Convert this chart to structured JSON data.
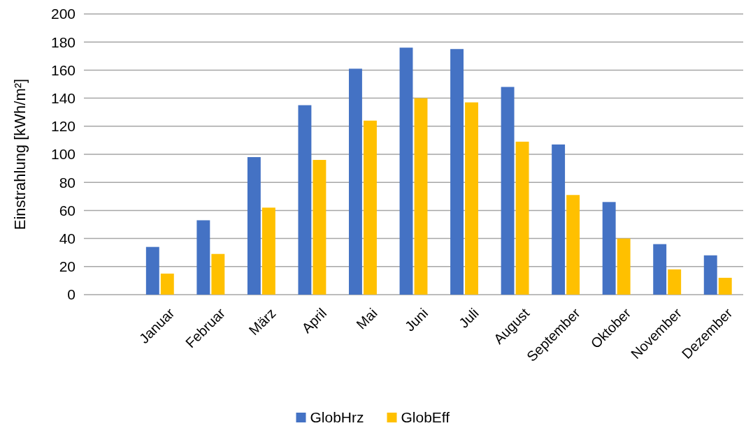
{
  "chart_data": {
    "type": "bar",
    "ylabel": "Einstrahlung [kWh/m²]",
    "categories": [
      null,
      "Januar",
      "Februar",
      "März",
      "April",
      "Mai",
      "Juni",
      "Juli",
      "August",
      "September",
      "Oktober",
      "November",
      "Dezember"
    ],
    "series": [
      {
        "name": "GlobHrz",
        "color": "#4472c4",
        "values": [
          null,
          34,
          53,
          98,
          135,
          161,
          176,
          175,
          148,
          107,
          66,
          36,
          28
        ]
      },
      {
        "name": "GlobEff",
        "color": "#ffc000",
        "values": [
          null,
          15,
          29,
          62,
          96,
          124,
          140,
          137,
          109,
          71,
          40,
          18,
          12
        ]
      }
    ],
    "ylim": [
      0,
      200
    ],
    "yticks": [
      0,
      20,
      40,
      60,
      80,
      100,
      120,
      140,
      160,
      180,
      200
    ],
    "grid": "y",
    "legend": "bottom"
  }
}
